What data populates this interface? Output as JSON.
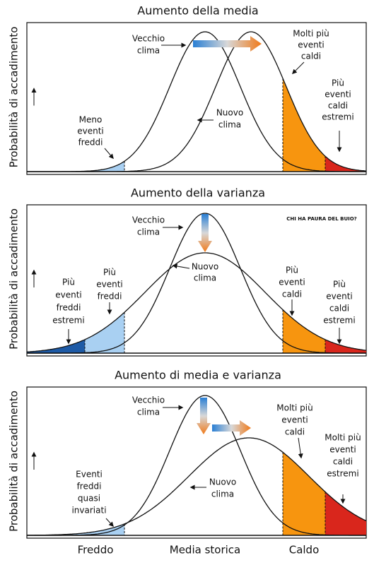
{
  "y_axis_label": "Probabilità di accadimento",
  "x_labels": [
    "Freddo",
    "Media storica",
    "Caldo"
  ],
  "watermark": "CHI HA PAURA DEL BUIO?",
  "panels": [
    {
      "title": "Aumento della media",
      "annotations": [
        {
          "lines": [
            "Vecchio",
            "clima"
          ]
        },
        {
          "lines": [
            "Molti più",
            "eventi",
            "caldi"
          ]
        },
        {
          "lines": [
            "Più",
            "eventi",
            "caldi",
            "estremi"
          ]
        },
        {
          "lines": [
            "Nuovo",
            "clima"
          ]
        },
        {
          "lines": [
            "Meno",
            "eventi",
            "freddi"
          ]
        }
      ]
    },
    {
      "title": "Aumento della varianza",
      "annotations": [
        {
          "lines": [
            "Vecchio",
            "clima"
          ]
        },
        {
          "lines": [
            "Nuovo",
            "clima"
          ]
        },
        {
          "lines": [
            "Più",
            "eventi",
            "freddi",
            "estremi"
          ]
        },
        {
          "lines": [
            "Più",
            "eventi",
            "freddi"
          ]
        },
        {
          "lines": [
            "Più",
            "eventi",
            "caldi"
          ]
        },
        {
          "lines": [
            "Più",
            "eventi",
            "caldi",
            "estremi"
          ]
        }
      ]
    },
    {
      "title": "Aumento di media e varianza",
      "annotations": [
        {
          "lines": [
            "Vecchio",
            "clima"
          ]
        },
        {
          "lines": [
            "Molti più",
            "eventi",
            "caldi"
          ]
        },
        {
          "lines": [
            "Molti più",
            "eventi",
            "caldi",
            "estremi"
          ]
        },
        {
          "lines": [
            "Nuovo",
            "clima"
          ]
        },
        {
          "lines": [
            "Eventi",
            "freddi",
            "quasi",
            "invariati"
          ]
        }
      ]
    }
  ]
}
